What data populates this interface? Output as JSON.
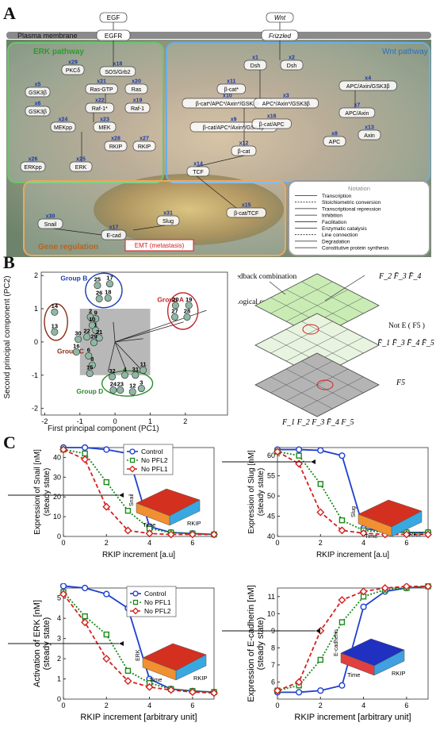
{
  "panel_labels": {
    "a": "A",
    "b": "B",
    "c": "C"
  },
  "panel_a": {
    "egf": "EGF",
    "egfr": "EGFR",
    "wnt": "Wnt",
    "frizzled": "Frizzled",
    "plasma_membrane": "Plasma membrane",
    "erk_title": "ERK pathway",
    "wnt_title": "Wnt pathway",
    "gene_title": "Gene regulation",
    "emt": "EMT (metastasis)",
    "colors": {
      "erk": "#5cb85c",
      "wnt": "#4a90d9",
      "gene": "#e8a050",
      "emt": "#d42020"
    },
    "nodes": [
      {
        "id": "x29",
        "label": "PKCδ"
      },
      {
        "id": "x18",
        "label": "SOS/Grb2"
      },
      {
        "id": "x5",
        "label": "GSK3β"
      },
      {
        "id": "x6",
        "label": "GSK3β"
      },
      {
        "id": "x21",
        "label": "Ras-GTP"
      },
      {
        "id": "x20",
        "label": "Ras"
      },
      {
        "id": "x22",
        "label": "Raf-1*"
      },
      {
        "id": "x19",
        "label": "Raf-1"
      },
      {
        "id": "x24",
        "label": "MEKpp"
      },
      {
        "id": "x23",
        "label": "MEK"
      },
      {
        "id": "x28",
        "label": "RKIP"
      },
      {
        "id": "x27",
        "label": "RKIP"
      },
      {
        "id": "x26",
        "label": "ERKpp"
      },
      {
        "id": "x25",
        "label": "ERK"
      },
      {
        "id": "x1",
        "label": "Dsh"
      },
      {
        "id": "x2",
        "label": "Dsh"
      },
      {
        "id": "x10",
        "label": "β-cat*/APC*/Axin*/GSK3β"
      },
      {
        "id": "x11",
        "label": "β-cat*"
      },
      {
        "id": "x3",
        "label": "APC*/Axin*/GSK3β"
      },
      {
        "id": "x4",
        "label": "APC/Axin/GSK3β"
      },
      {
        "id": "x9",
        "label": "β-cat/APC*/Axin*/GSK3β"
      },
      {
        "id": "x16",
        "label": "β-cat/APC"
      },
      {
        "id": "x7",
        "label": "APC/Axin"
      },
      {
        "id": "x12",
        "label": "β-cat"
      },
      {
        "id": "x8",
        "label": "APC"
      },
      {
        "id": "x13",
        "label": "Axin"
      },
      {
        "id": "x14",
        "label": "TCF"
      },
      {
        "id": "x15",
        "label": "β-cat/TCF"
      },
      {
        "id": "x30",
        "label": "Snail"
      },
      {
        "id": "x31",
        "label": "Slug"
      },
      {
        "id": "x17",
        "label": "E-cad"
      }
    ],
    "notation_title": "Notation",
    "notation": [
      "Transcription",
      "Stoichiometric conversion",
      "Transcriptional repression",
      "Inhibition",
      "Facilitation",
      "Enzymatic catalysis",
      "Line connection",
      "Degradation",
      "Constitutive protein synthesis"
    ]
  },
  "panel_b": {
    "chart_data": {
      "type": "scatter",
      "xlabel": "First principal component (PC1)",
      "ylabel": "Second principal component (PC2)",
      "xlim": [
        -2.1,
        3.2
      ],
      "ylim": [
        -2.2,
        2.1
      ],
      "xticks": [
        -2,
        -1,
        0,
        1,
        2
      ],
      "yticks": [
        -2,
        -1,
        0,
        1,
        2
      ],
      "groups": [
        {
          "name": "Group A",
          "color": "#c0282d"
        },
        {
          "name": "Group B",
          "color": "#1f3fb0"
        },
        {
          "name": "Group C",
          "color": "#8b2d14"
        },
        {
          "name": "Group D",
          "color": "#2a8a2a"
        }
      ],
      "points": [
        {
          "label": "17",
          "x": -0.15,
          "y": 1.75
        },
        {
          "label": "25",
          "x": -0.5,
          "y": 1.7
        },
        {
          "label": "18",
          "x": -0.2,
          "y": 1.32
        },
        {
          "label": "26",
          "x": -0.45,
          "y": 1.3
        },
        {
          "label": "20",
          "x": 1.72,
          "y": 1.1
        },
        {
          "label": "19",
          "x": 2.1,
          "y": 1.1
        },
        {
          "label": "28",
          "x": 2.05,
          "y": 0.75
        },
        {
          "label": "27",
          "x": 1.7,
          "y": 0.75
        },
        {
          "label": "14",
          "x": -1.72,
          "y": 0.9
        },
        {
          "label": "2",
          "x": -0.7,
          "y": 0.75
        },
        {
          "label": "9",
          "x": -0.55,
          "y": 0.7
        },
        {
          "label": "10",
          "x": -0.65,
          "y": 0.5
        },
        {
          "label": "1",
          "x": -0.55,
          "y": 0.35
        },
        {
          "label": "22",
          "x": -0.8,
          "y": 0.15
        },
        {
          "label": "21",
          "x": -0.45,
          "y": 0.12
        },
        {
          "label": "13",
          "x": -1.72,
          "y": 0.3
        },
        {
          "label": "30",
          "x": -1.05,
          "y": 0.08
        },
        {
          "label": "29",
          "x": -0.6,
          "y": -0.02
        },
        {
          "label": "16",
          "x": -1.1,
          "y": -0.3
        },
        {
          "label": "6",
          "x": -0.75,
          "y": -0.42
        },
        {
          "label": "8",
          "x": -0.65,
          "y": -0.7
        },
        {
          "label": "15",
          "x": -0.72,
          "y": -0.95
        },
        {
          "label": "32",
          "x": -0.08,
          "y": -1.05
        },
        {
          "label": "4",
          "x": 0.28,
          "y": -1.0
        },
        {
          "label": "31",
          "x": 0.58,
          "y": -1.0
        },
        {
          "label": "11",
          "x": 0.8,
          "y": -0.85
        },
        {
          "label": "24",
          "x": -0.05,
          "y": -1.45
        },
        {
          "label": "23",
          "x": 0.15,
          "y": -1.45
        },
        {
          "label": "12",
          "x": 0.5,
          "y": -1.5
        },
        {
          "label": "3",
          "x": 0.75,
          "y": -1.4
        }
      ]
    },
    "feedback_combination": "Feedback combination",
    "logical_output_index": "Logical output index",
    "not_e": "Not E ( F5 )",
    "f5": "F5",
    "formula_top": "F_2 F̄_3 F̄_4",
    "formula_mid": "F̄_1 F̄_3 F̄_4 F̄_5",
    "formula_bot": "F_1 F_2 F_3 F̄_4 F_5"
  },
  "panel_c": {
    "charts": [
      {
        "type": "line",
        "ylabel": "Expression of Snail [nM] (steady state)",
        "xlabel": "RKIP increment [a.u]",
        "xlim": [
          0,
          7
        ],
        "ylim": [
          0,
          45
        ],
        "xticks": [
          0,
          2,
          4,
          6
        ],
        "yticks": [
          0,
          10,
          20,
          30,
          40
        ],
        "x": [
          0,
          1,
          2,
          3,
          4,
          5,
          6,
          7
        ],
        "legend": [
          "Control",
          "No PFL2",
          "No PFL1"
        ],
        "series": [
          {
            "name": "Control",
            "color": "#1f3fd0",
            "marker": "circle",
            "dash": "solid",
            "values": [
              45,
              45,
              44,
              42,
              5,
              2,
              1.5,
              1
            ]
          },
          {
            "name": "No PFL2",
            "color": "#1a8a1a",
            "marker": "square",
            "dash": "dot",
            "values": [
              44,
              42,
              27.5,
              13,
              4,
              2,
              1.5,
              1
            ]
          },
          {
            "name": "No PFL1",
            "color": "#d42020",
            "marker": "diamond",
            "dash": "dash",
            "values": [
              44,
              39,
              15,
              3,
              1.5,
              1,
              1,
              1
            ]
          }
        ],
        "inset": {
          "zlabel": "Snail",
          "xlabel": "Time",
          "ylabel": "RKIP"
        }
      },
      {
        "type": "line",
        "ylabel": "Expression of Slug [nM] (steady state)",
        "xlabel": "RKIP increment [a.u]",
        "xlim": [
          0,
          7
        ],
        "ylim": [
          40,
          62
        ],
        "xticks": [
          0,
          2,
          4,
          6
        ],
        "yticks": [
          40,
          45,
          50,
          55,
          60
        ],
        "x": [
          0,
          1,
          2,
          3,
          4,
          5,
          6,
          7
        ],
        "series": [
          {
            "name": "Control",
            "color": "#1f3fd0",
            "marker": "circle",
            "dash": "solid",
            "values": [
              61.5,
              61.5,
              61.3,
              60,
              42,
              41.2,
              41,
              41
            ]
          },
          {
            "name": "No PFL2",
            "color": "#1a8a1a",
            "marker": "square",
            "dash": "dot",
            "values": [
              61,
              60,
              53,
              44,
              41.5,
              41,
              41,
              41
            ]
          },
          {
            "name": "No PFL1",
            "color": "#d42020",
            "marker": "diamond",
            "dash": "dash",
            "values": [
              61,
              58,
              46,
              41.5,
              40.8,
              40.5,
              40.5,
              40.5
            ]
          }
        ],
        "inset": {
          "zlabel": "Slug",
          "xlabel": "Time",
          "ylabel": "RKIP"
        }
      },
      {
        "type": "line",
        "ylabel": "Activation of ERK [nM] (steady state)",
        "xlabel": "RKIP increment [arbitrary unit]",
        "xlim": [
          0,
          7
        ],
        "ylim": [
          0,
          5.5
        ],
        "xticks": [
          0,
          2,
          4,
          6
        ],
        "yticks": [
          0,
          1,
          2,
          3,
          4,
          5
        ],
        "x": [
          0,
          1,
          2,
          3,
          4,
          5,
          6,
          7
        ],
        "legend": [
          "Control",
          "No PFL1",
          "No PFL2"
        ],
        "series": [
          {
            "name": "Control",
            "color": "#1f3fd0",
            "marker": "circle",
            "dash": "solid",
            "values": [
              5.6,
              5.5,
              5.2,
              4.5,
              1.0,
              0.5,
              0.4,
              0.35
            ]
          },
          {
            "name": "No PFL1",
            "color": "#1a8a1a",
            "marker": "square",
            "dash": "dot",
            "values": [
              5.3,
              4.1,
              3.2,
              1.4,
              0.8,
              0.5,
              0.4,
              0.35
            ]
          },
          {
            "name": "No PFL2",
            "color": "#d42020",
            "marker": "diamond",
            "dash": "dash",
            "values": [
              5.2,
              3.8,
              2.0,
              0.9,
              0.6,
              0.45,
              0.35,
              0.3
            ]
          }
        ],
        "inset": {
          "zlabel": "ERK",
          "xlabel": "Time",
          "ylabel": "RKIP"
        }
      },
      {
        "type": "line",
        "ylabel": "Expression of E-cadherin [nM] (steady state)",
        "xlabel": "RKIP increment [arbitrary unit]",
        "xlim": [
          0,
          7
        ],
        "ylim": [
          5,
          11.5
        ],
        "xticks": [
          0,
          2,
          4,
          6
        ],
        "yticks": [
          6,
          7,
          8,
          9,
          10,
          11
        ],
        "x": [
          0,
          1,
          2,
          3,
          4,
          5,
          6,
          7
        ],
        "series": [
          {
            "name": "Control",
            "color": "#1f3fd0",
            "marker": "circle",
            "dash": "solid",
            "values": [
              5.4,
              5.4,
              5.5,
              5.8,
              10.4,
              11.3,
              11.5,
              11.6
            ]
          },
          {
            "name": "No PFL1",
            "color": "#1a8a1a",
            "marker": "square",
            "dash": "dot",
            "values": [
              5.5,
              5.8,
              7.3,
              9.5,
              11.0,
              11.4,
              11.5,
              11.6
            ]
          },
          {
            "name": "No PFL2",
            "color": "#d42020",
            "marker": "diamond",
            "dash": "dash",
            "values": [
              5.5,
              6.0,
              9.0,
              10.8,
              11.3,
              11.5,
              11.6,
              11.6
            ]
          }
        ],
        "inset": {
          "zlabel": "E-cadherin",
          "xlabel": "Time",
          "ylabel": "RKIP"
        }
      }
    ]
  }
}
